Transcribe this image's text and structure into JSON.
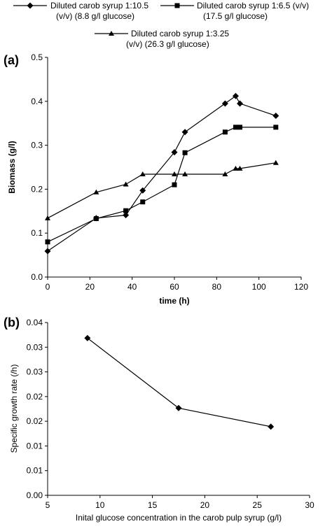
{
  "chart_data": [
    {
      "panel_label": "(a)",
      "type": "line",
      "xlabel": "time (h)",
      "ylabel": "Biomass (g/l)",
      "xlim": [
        0,
        120
      ],
      "ylim": [
        0,
        0.5
      ],
      "xticks": [
        "0",
        "20",
        "40",
        "60",
        "80",
        "100",
        "120"
      ],
      "yticks": [
        "0.0",
        "0.1",
        "0.2",
        "0.3",
        "0.4",
        "0.5"
      ],
      "grid": false,
      "legend_position": "top",
      "series": [
        {
          "name_line1": "Diluted carob syrup 1:10.5",
          "name_line2": "(v/v) (8.8 g/l glucose)",
          "marker": "diamond",
          "points": [
            [
              0,
              0.059
            ],
            [
              23,
              0.134
            ],
            [
              37,
              0.141
            ],
            [
              45,
              0.197
            ],
            [
              60,
              0.284
            ],
            [
              65,
              0.33
            ],
            [
              84,
              0.395
            ],
            [
              89,
              0.412
            ],
            [
              91,
              0.395
            ],
            [
              108,
              0.367
            ]
          ]
        },
        {
          "name_line1": "Diluted carob syrup 1:6.5 (v/v)",
          "name_line2": "(17.5 g/l glucose)",
          "marker": "square",
          "points": [
            [
              0,
              0.08
            ],
            [
              23,
              0.133
            ],
            [
              37,
              0.151
            ],
            [
              45,
              0.171
            ],
            [
              60,
              0.21
            ],
            [
              65,
              0.283
            ],
            [
              84,
              0.33
            ],
            [
              89,
              0.341
            ],
            [
              91,
              0.341
            ],
            [
              108,
              0.341
            ]
          ]
        },
        {
          "name_line1": "Diluted carob syrup 1:3.25",
          "name_line2": "(v/v) (26.3 g/l glucose)",
          "marker": "triangle",
          "points": [
            [
              0,
              0.134
            ],
            [
              23,
              0.193
            ],
            [
              37,
              0.211
            ],
            [
              45,
              0.234
            ],
            [
              60,
              0.234
            ],
            [
              65,
              0.234
            ],
            [
              84,
              0.234
            ],
            [
              89,
              0.247
            ],
            [
              91,
              0.247
            ],
            [
              108,
              0.26
            ]
          ]
        }
      ]
    },
    {
      "panel_label": "(b)",
      "type": "line",
      "xlabel": "Inital glucose concentration in the carob pulp syrup (g/l)",
      "ylabel": "Specific growth rate (/h)",
      "xlim": [
        5,
        30
      ],
      "ylim": [
        0,
        0.04
      ],
      "xticks": [
        "5",
        "10",
        "15",
        "20",
        "25",
        "30"
      ],
      "yticks": [
        "0.00",
        "0.01",
        "0.01",
        "0.02",
        "0.02",
        "0.03",
        "0.03",
        "0.04"
      ],
      "grid": false,
      "series": [
        {
          "marker": "diamond",
          "points": [
            [
              8.8,
              0.0364
            ],
            [
              17.5,
              0.0202
            ],
            [
              26.3,
              0.0159
            ]
          ]
        }
      ]
    }
  ]
}
